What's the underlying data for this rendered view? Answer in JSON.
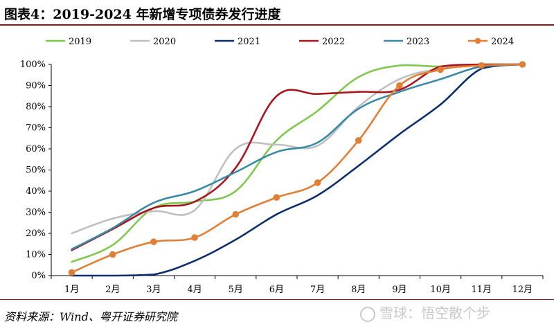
{
  "header": {
    "title": "图表4：2019-2024 年新增专项债券发行进度"
  },
  "footer": {
    "source": "资料来源：Wind、粤开证券研究院",
    "watermark": "雪球：悟空散个步"
  },
  "chart_data": {
    "type": "line",
    "title": "",
    "xlabel": "",
    "ylabel": "",
    "categories": [
      "1月",
      "2月",
      "3月",
      "4月",
      "5月",
      "6月",
      "7月",
      "8月",
      "9月",
      "10月",
      "11月",
      "12月"
    ],
    "ylim": [
      0,
      100
    ],
    "yticks": [
      "0%",
      "10%",
      "20%",
      "30%",
      "40%",
      "50%",
      "60%",
      "70%",
      "80%",
      "90%",
      "100%"
    ],
    "grid": false,
    "legend_position": "top",
    "series": [
      {
        "name": "2019",
        "color": "#7ec850",
        "markers": false,
        "values": [
          6.5,
          14.5,
          32,
          35,
          40,
          64,
          78,
          94,
          99.5,
          99,
          100,
          100
        ]
      },
      {
        "name": "2020",
        "color": "#bfbfbf",
        "markers": false,
        "values": [
          20,
          27,
          30.5,
          31,
          60,
          62,
          61.5,
          80,
          93,
          98,
          100,
          100
        ]
      },
      {
        "name": "2021",
        "color": "#0c2f6b",
        "markers": false,
        "values": [
          0,
          0,
          0.5,
          7,
          17,
          29,
          38,
          52,
          67,
          81,
          98,
          100
        ]
      },
      {
        "name": "2022",
        "color": "#a8161d",
        "markers": false,
        "values": [
          12,
          22,
          32,
          35,
          51,
          85,
          86,
          87,
          88,
          99,
          100,
          100
        ]
      },
      {
        "name": "2023",
        "color": "#3a8aa6",
        "markers": false,
        "values": [
          12.5,
          22.5,
          34.5,
          40,
          49,
          58.5,
          63,
          79,
          87,
          93,
          99,
          100
        ]
      },
      {
        "name": "2024",
        "color": "#e07f35",
        "markers": true,
        "values": [
          1.5,
          10,
          16,
          18,
          29,
          37,
          44,
          64,
          90,
          97.5,
          99.5,
          100
        ]
      }
    ]
  }
}
